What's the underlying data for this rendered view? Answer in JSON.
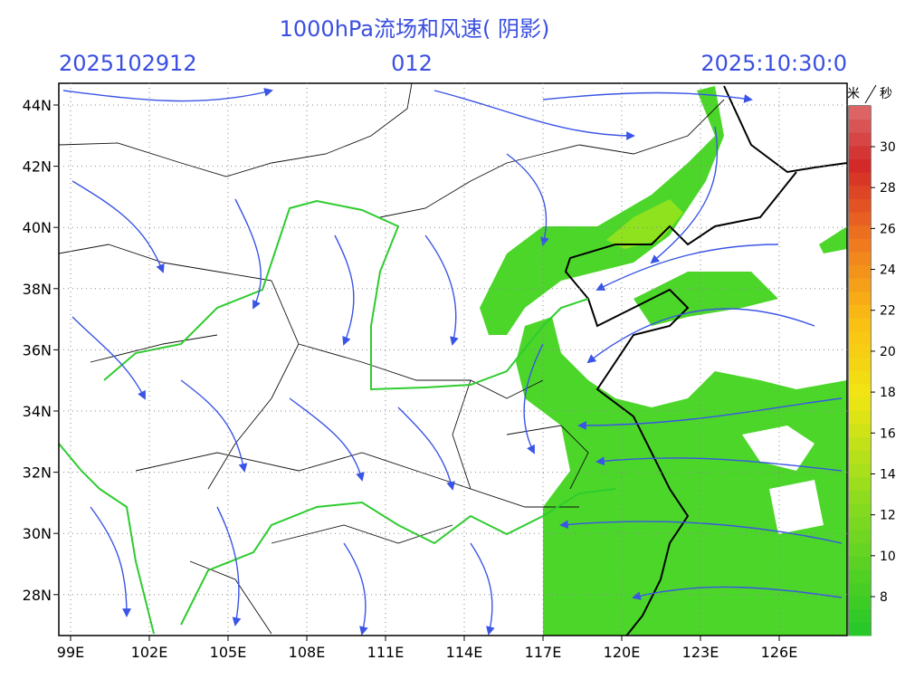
{
  "header": {
    "title": "1000hPa流场和风速( 阴影)",
    "left": "2025102912",
    "center": "012",
    "right": "2025:10:30:0"
  },
  "map": {
    "lat_labels": [
      "44N",
      "42N",
      "40N",
      "38N",
      "36N",
      "34N",
      "32N",
      "30N",
      "28N"
    ],
    "lon_labels": [
      "99E",
      "102E",
      "105E",
      "108E",
      "111E",
      "114E",
      "117E",
      "120E",
      "123E",
      "126E"
    ]
  },
  "colorbar": {
    "unit_top": "米",
    "unit_bottom": "秒",
    "ticks": [
      8,
      10,
      12,
      14,
      16,
      18,
      20,
      22,
      24,
      26,
      28,
      30
    ]
  }
}
